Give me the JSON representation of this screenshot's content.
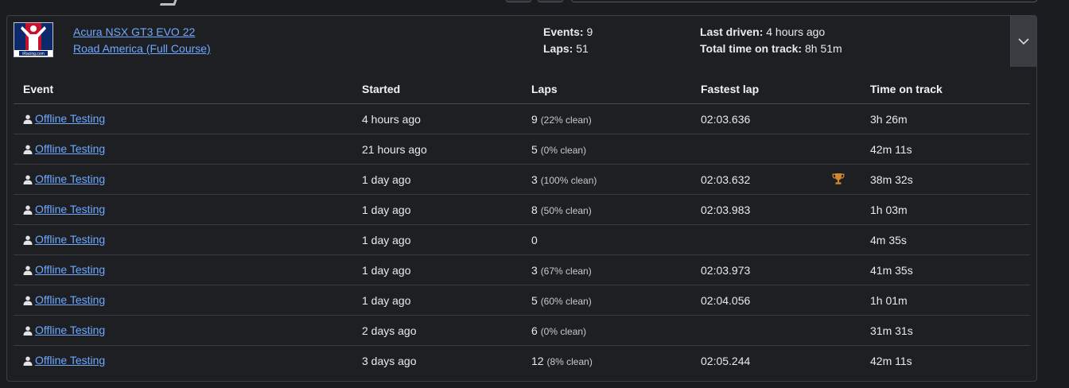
{
  "header": {
    "car": "Acura NSX GT3 EVO 22",
    "track": "Road America (Full Course)",
    "events_label": "Events:",
    "events_value": "9",
    "laps_label": "Laps:",
    "laps_value": "51",
    "last_driven_label": "Last driven:",
    "last_driven_value": "4 hours ago",
    "total_time_label": "Total time on track:",
    "total_time_value": "8h 51m"
  },
  "logo": {
    "text": "iRacing.com"
  },
  "table": {
    "columns": [
      "Event",
      "Started",
      "Laps",
      "Fastest lap",
      "Time on track"
    ],
    "rows": [
      {
        "event": "Offline Testing",
        "started": "4 hours ago",
        "laps": "9",
        "clean": "(22% clean)",
        "fastest": "02:03.636",
        "best": false,
        "time": "3h 26m"
      },
      {
        "event": "Offline Testing",
        "started": "21 hours ago",
        "laps": "5",
        "clean": "(0% clean)",
        "fastest": "",
        "best": false,
        "time": "42m 11s"
      },
      {
        "event": "Offline Testing",
        "started": "1 day ago",
        "laps": "3",
        "clean": "(100% clean)",
        "fastest": "02:03.632",
        "best": true,
        "time": "38m 32s"
      },
      {
        "event": "Offline Testing",
        "started": "1 day ago",
        "laps": "8",
        "clean": "(50% clean)",
        "fastest": "02:03.983",
        "best": false,
        "time": "1h 03m"
      },
      {
        "event": "Offline Testing",
        "started": "1 day ago",
        "laps": "0",
        "clean": "",
        "fastest": "",
        "best": false,
        "time": "4m 35s"
      },
      {
        "event": "Offline Testing",
        "started": "1 day ago",
        "laps": "3",
        "clean": "(67% clean)",
        "fastest": "02:03.973",
        "best": false,
        "time": "41m 35s"
      },
      {
        "event": "Offline Testing",
        "started": "1 day ago",
        "laps": "5",
        "clean": "(60% clean)",
        "fastest": "02:04.056",
        "best": false,
        "time": "1h 01m"
      },
      {
        "event": "Offline Testing",
        "started": "2 days ago",
        "laps": "6",
        "clean": "(0% clean)",
        "fastest": "",
        "best": false,
        "time": "31m 31s"
      },
      {
        "event": "Offline Testing",
        "started": "3 days ago",
        "laps": "12",
        "clean": "(8% clean)",
        "fastest": "02:05.244",
        "best": false,
        "time": "42m 11s"
      }
    ]
  },
  "icons": {
    "event_type": "person-icon",
    "best_lap": "trophy-icon",
    "collapse": "chevron-down-icon"
  },
  "colors": {
    "link": "#6ea8fe",
    "trophy": "#d4872a",
    "background": "#1e1f23"
  }
}
